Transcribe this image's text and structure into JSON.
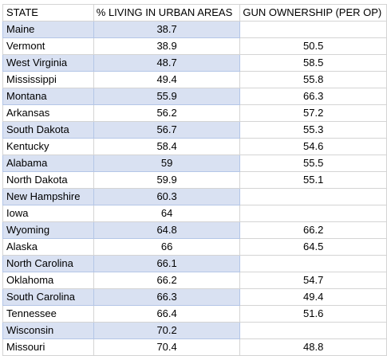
{
  "headers": [
    "STATE",
    "% LIVING IN URBAN AREAS",
    "GUN OWNERSHIP (PER OP)"
  ],
  "rows": [
    {
      "state": "Maine",
      "urban": "38.7",
      "gun": "",
      "band": true
    },
    {
      "state": "Vermont",
      "urban": "38.9",
      "gun": "50.5",
      "band": false
    },
    {
      "state": "West Virginia",
      "urban": "48.7",
      "gun": "58.5",
      "band": true
    },
    {
      "state": "Mississippi",
      "urban": "49.4",
      "gun": "55.8",
      "band": false
    },
    {
      "state": "Montana",
      "urban": "55.9",
      "gun": "66.3",
      "band": true
    },
    {
      "state": "Arkansas",
      "urban": "56.2",
      "gun": "57.2",
      "band": false
    },
    {
      "state": "South Dakota",
      "urban": "56.7",
      "gun": "55.3",
      "band": true
    },
    {
      "state": "Kentucky",
      "urban": "58.4",
      "gun": "54.6",
      "band": false
    },
    {
      "state": "Alabama",
      "urban": "59",
      "gun": "55.5",
      "band": true
    },
    {
      "state": "North Dakota",
      "urban": "59.9",
      "gun": "55.1",
      "band": false
    },
    {
      "state": "New Hampshire",
      "urban": "60.3",
      "gun": "",
      "band": true
    },
    {
      "state": "Iowa",
      "urban": "64",
      "gun": "",
      "band": false
    },
    {
      "state": "Wyoming",
      "urban": "64.8",
      "gun": "66.2",
      "band": true
    },
    {
      "state": "Alaska",
      "urban": "66",
      "gun": "64.5",
      "band": false
    },
    {
      "state": "North Carolina",
      "urban": "66.1",
      "gun": "",
      "band": true
    },
    {
      "state": "Oklahoma",
      "urban": "66.2",
      "gun": "54.7",
      "band": false
    },
    {
      "state": "South Carolina",
      "urban": "66.3",
      "gun": "49.4",
      "band": true
    },
    {
      "state": "Tennessee",
      "urban": "66.4",
      "gun": "51.6",
      "band": false
    },
    {
      "state": "Wisconsin",
      "urban": "70.2",
      "gun": "",
      "band": true
    },
    {
      "state": "Missouri",
      "urban": "70.4",
      "gun": "48.8",
      "band": false
    }
  ]
}
